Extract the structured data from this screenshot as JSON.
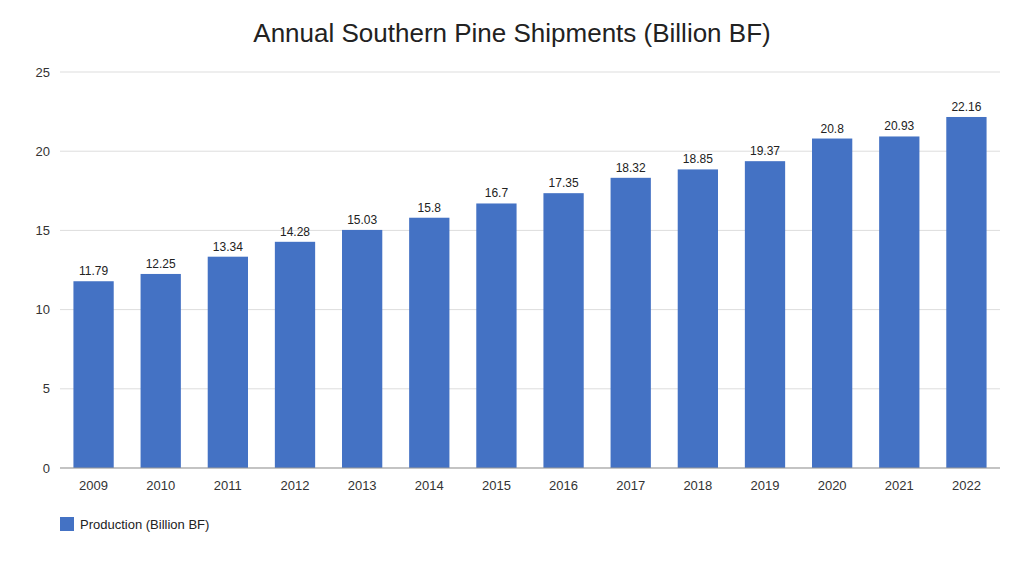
{
  "chart_data": {
    "type": "bar",
    "title": "Annual Southern Pine Shipments (Billion BF)",
    "categories": [
      "2009",
      "2010",
      "2011",
      "2012",
      "2013",
      "2014",
      "2015",
      "2016",
      "2017",
      "2018",
      "2019",
      "2020",
      "2021",
      "2022"
    ],
    "series": [
      {
        "name": "Production (Billion BF)",
        "color": "#4472C4",
        "values": [
          11.79,
          12.25,
          13.34,
          14.28,
          15.03,
          15.8,
          16.7,
          17.35,
          18.32,
          18.85,
          19.37,
          20.8,
          20.93,
          22.16
        ]
      }
    ],
    "ylim": [
      0,
      25
    ],
    "yticks": [
      0,
      5,
      10,
      15,
      20,
      25
    ],
    "grid": true,
    "data_labels": true,
    "legend": "bottom"
  }
}
